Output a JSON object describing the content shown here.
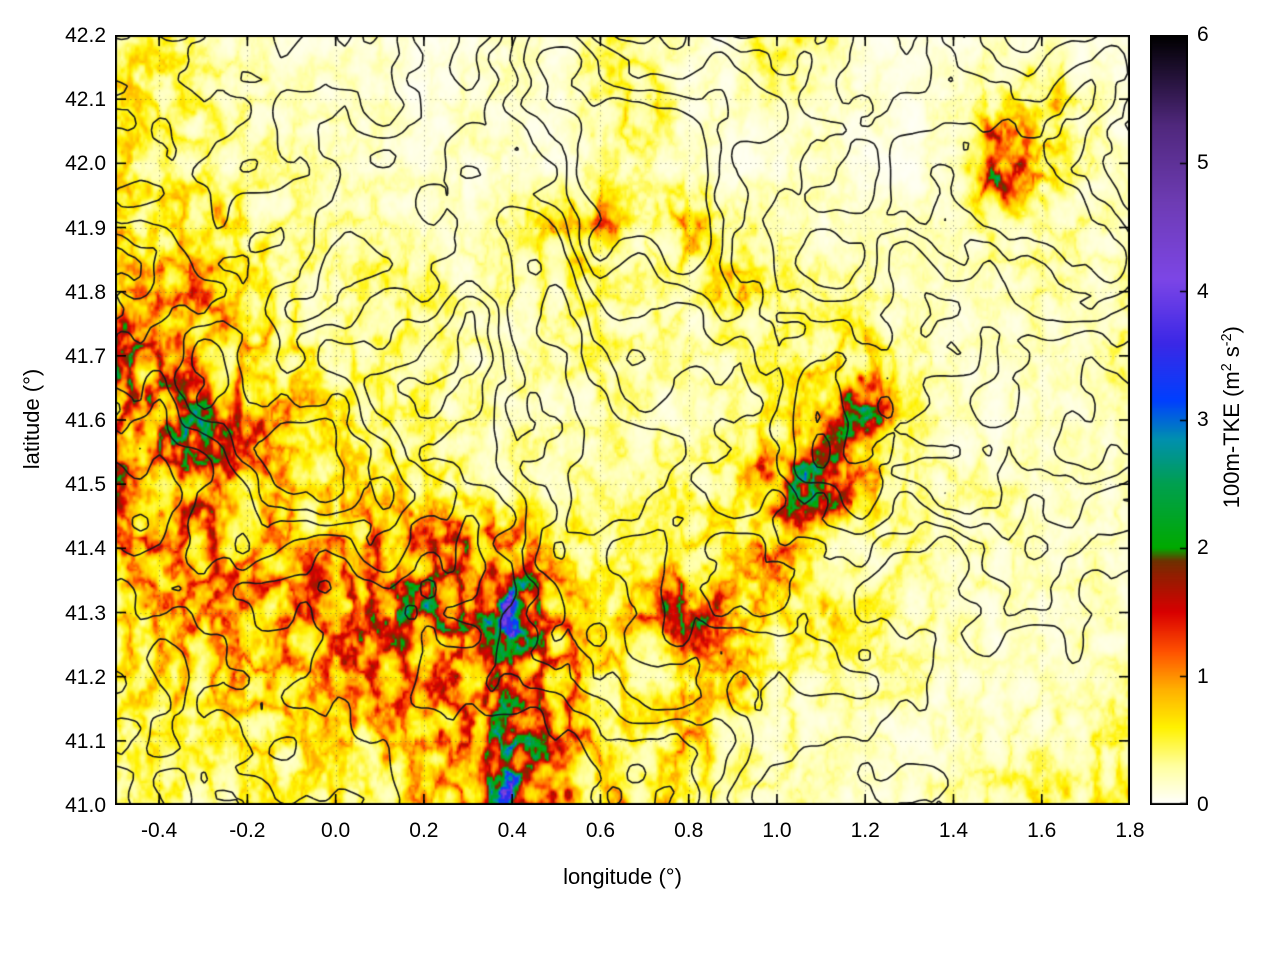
{
  "chart_data": {
    "type": "heatmap",
    "title": "",
    "xlabel": "longitude (°)",
    "ylabel": "latitude (°)",
    "xlim": [
      -0.5,
      1.8
    ],
    "ylim": [
      41.0,
      42.2
    ],
    "grid": "dotted",
    "xticks": {
      "values": [
        -0.4,
        -0.2,
        0.0,
        0.2,
        0.4,
        0.6,
        0.8,
        1.0,
        1.2,
        1.4,
        1.6,
        1.8
      ],
      "labels": [
        "-0.4",
        "-0.2",
        "0.0",
        "0.2",
        "0.4",
        "0.6",
        "0.8",
        "1.0",
        "1.2",
        "1.4",
        "1.6",
        "1.8"
      ]
    },
    "yticks": {
      "values": [
        41.0,
        41.1,
        41.2,
        41.3,
        41.4,
        41.5,
        41.6,
        41.7,
        41.8,
        41.9,
        42.0,
        42.1,
        42.2
      ],
      "labels": [
        "41.0",
        "41.1",
        "41.2",
        "41.3",
        "41.4",
        "41.5",
        "41.6",
        "41.7",
        "41.8",
        "41.9",
        "42.0",
        "42.1",
        "42.2"
      ]
    },
    "colorbar": {
      "label": "100m-TKE (m² s⁻²)",
      "label_parts": {
        "p1": "100m-TKE (m",
        "sup1": "2",
        "p2": " s",
        "sup2": "-2",
        "p3": ")"
      },
      "range": [
        0,
        6
      ],
      "ticks": {
        "values": [
          0,
          1,
          2,
          3,
          4,
          5,
          6
        ],
        "labels": [
          "0",
          "1",
          "2",
          "3",
          "4",
          "5",
          "6"
        ]
      },
      "colormap": [
        {
          "v": 0.0,
          "c": "#ffffff"
        },
        {
          "v": 0.3,
          "c": "#ffffa0"
        },
        {
          "v": 0.6,
          "c": "#fff200"
        },
        {
          "v": 0.9,
          "c": "#ffb000"
        },
        {
          "v": 1.2,
          "c": "#ff5000"
        },
        {
          "v": 1.5,
          "c": "#d90000"
        },
        {
          "v": 1.8,
          "c": "#8f2000"
        },
        {
          "v": 1.9,
          "c": "#6e3200"
        },
        {
          "v": 2.0,
          "c": "#00aa00"
        },
        {
          "v": 2.5,
          "c": "#00a050"
        },
        {
          "v": 2.85,
          "c": "#0090b0"
        },
        {
          "v": 3.15,
          "c": "#0040ff"
        },
        {
          "v": 3.6,
          "c": "#3c28e6"
        },
        {
          "v": 4.1,
          "c": "#7d46e6"
        },
        {
          "v": 4.7,
          "c": "#6e3cb4"
        },
        {
          "v": 5.3,
          "c": "#50287d"
        },
        {
          "v": 6.0,
          "c": "#000000"
        }
      ]
    },
    "overlay_contours": {
      "color": "#1a1a1a",
      "style": "solid"
    },
    "field": {
      "units": "m² s⁻²",
      "lon": [
        -0.5,
        -0.4,
        -0.3,
        -0.2,
        -0.1,
        0.0,
        0.1,
        0.2,
        0.3,
        0.4,
        0.5,
        0.6,
        0.7,
        0.8,
        0.9,
        1.0,
        1.1,
        1.2,
        1.3,
        1.4,
        1.5,
        1.6,
        1.7,
        1.8
      ],
      "lat": [
        42.2,
        42.1,
        42.0,
        41.9,
        41.8,
        41.7,
        41.6,
        41.5,
        41.4,
        41.3,
        41.2,
        41.1,
        41.0
      ],
      "values": [
        [
          0.5,
          0.5,
          0.3,
          0.2,
          0.2,
          0.2,
          0.2,
          0.1,
          0.1,
          0.2,
          0.2,
          0.4,
          0.3,
          0.2,
          0.1,
          0.7,
          0.4,
          0.1,
          0.1,
          0.1,
          0.2,
          0.2,
          0.1,
          0.1
        ],
        [
          0.6,
          0.5,
          0.4,
          0.3,
          0.2,
          0.2,
          0.2,
          0.1,
          0.2,
          0.2,
          0.1,
          0.5,
          0.6,
          0.2,
          0.2,
          0.4,
          0.2,
          0.2,
          0.1,
          0.2,
          0.4,
          0.8,
          0.3,
          0.1
        ],
        [
          0.6,
          0.5,
          0.4,
          0.3,
          0.3,
          0.2,
          0.2,
          0.2,
          0.2,
          0.2,
          0.1,
          0.3,
          0.3,
          0.2,
          0.1,
          0.2,
          0.2,
          0.1,
          0.1,
          0.3,
          1.9,
          0.7,
          0.3,
          0.2
        ],
        [
          0.7,
          0.6,
          0.8,
          0.5,
          0.3,
          0.3,
          0.3,
          0.2,
          0.2,
          0.3,
          0.7,
          1.0,
          0.3,
          0.8,
          0.3,
          0.3,
          0.2,
          0.2,
          0.2,
          0.2,
          0.4,
          0.3,
          0.3,
          0.2
        ],
        [
          0.7,
          0.9,
          1.1,
          0.6,
          0.4,
          0.3,
          0.5,
          0.4,
          0.3,
          0.3,
          0.4,
          0.4,
          0.3,
          0.3,
          0.8,
          0.4,
          0.3,
          0.3,
          0.2,
          0.2,
          0.2,
          0.3,
          0.2,
          0.3
        ],
        [
          1.9,
          1.3,
          0.9,
          0.8,
          0.6,
          0.4,
          0.4,
          0.4,
          0.3,
          0.2,
          0.3,
          0.4,
          0.3,
          0.3,
          0.3,
          0.4,
          0.5,
          0.8,
          0.3,
          0.2,
          0.2,
          0.2,
          0.2,
          0.4
        ],
        [
          1.2,
          1.7,
          2.0,
          1.2,
          0.8,
          0.6,
          0.4,
          0.4,
          0.3,
          0.3,
          0.3,
          0.3,
          0.3,
          0.2,
          0.3,
          0.5,
          1.2,
          1.9,
          0.4,
          0.2,
          0.2,
          0.2,
          0.2,
          0.2
        ],
        [
          1.4,
          1.2,
          1.5,
          1.0,
          0.8,
          0.7,
          0.6,
          0.5,
          0.4,
          0.3,
          0.3,
          0.3,
          0.4,
          0.4,
          0.5,
          1.5,
          2.2,
          0.8,
          0.3,
          0.3,
          0.3,
          0.2,
          0.2,
          0.2
        ],
        [
          0.9,
          1.0,
          1.2,
          1.0,
          0.9,
          1.0,
          1.1,
          1.2,
          1.3,
          1.1,
          0.6,
          0.4,
          0.4,
          0.5,
          0.6,
          1.0,
          0.4,
          0.3,
          0.4,
          0.2,
          0.3,
          0.2,
          0.2,
          0.2
        ],
        [
          0.8,
          0.9,
          1.0,
          1.0,
          1.1,
          1.2,
          1.4,
          1.9,
          1.4,
          2.7,
          1.1,
          0.5,
          0.9,
          1.9,
          0.9,
          0.6,
          0.8,
          0.5,
          0.3,
          0.3,
          0.2,
          0.2,
          0.3,
          0.2
        ],
        [
          0.6,
          0.7,
          0.8,
          0.9,
          0.9,
          1.0,
          1.2,
          1.0,
          1.2,
          1.5,
          1.1,
          0.7,
          0.5,
          0.6,
          0.8,
          0.4,
          0.3,
          0.3,
          0.3,
          0.2,
          0.2,
          0.2,
          0.2,
          0.3
        ],
        [
          0.4,
          0.5,
          0.5,
          0.6,
          0.6,
          0.7,
          0.8,
          0.9,
          1.1,
          2.1,
          1.4,
          0.8,
          0.5,
          0.9,
          0.4,
          0.3,
          0.3,
          0.2,
          0.2,
          0.2,
          0.3,
          0.3,
          0.4,
          0.4
        ],
        [
          0.3,
          0.4,
          0.4,
          0.5,
          0.5,
          0.5,
          0.6,
          0.8,
          1.1,
          2.6,
          1.2,
          0.7,
          0.8,
          0.4,
          0.3,
          0.3,
          0.2,
          0.2,
          0.2,
          0.3,
          0.4,
          0.5,
          0.5,
          0.6
        ]
      ]
    }
  }
}
